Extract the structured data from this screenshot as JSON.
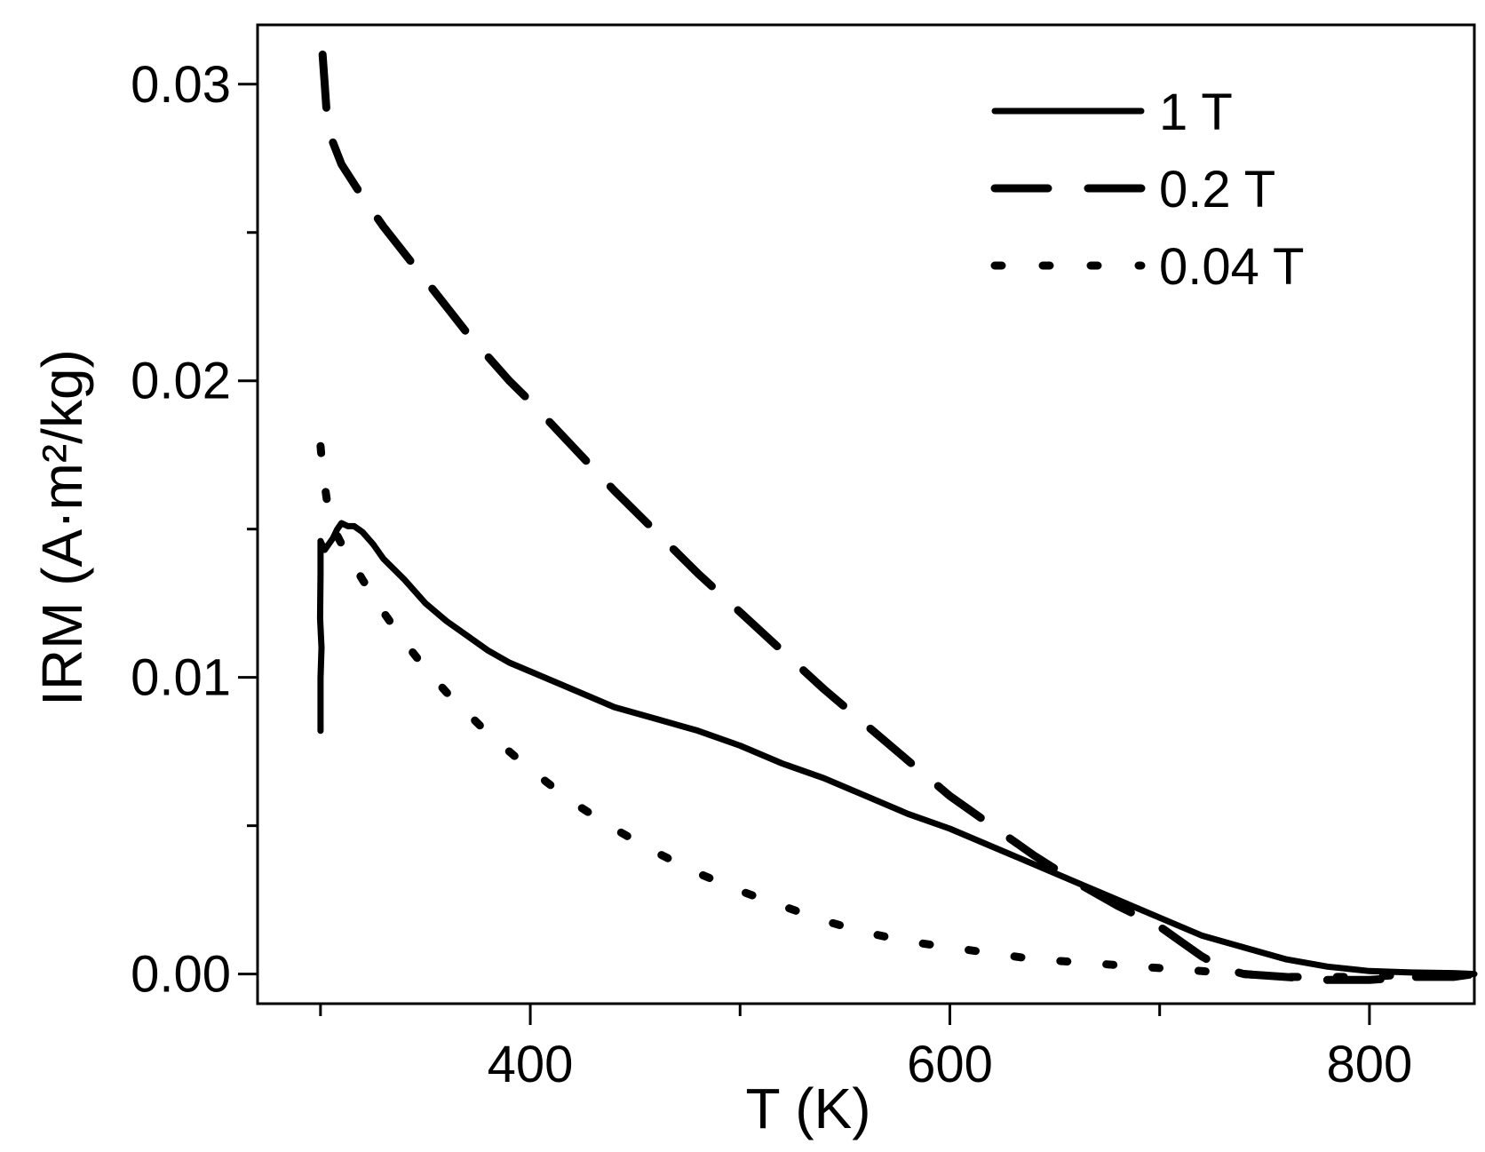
{
  "chart_data": {
    "type": "line",
    "xlabel": "T (K)",
    "ylabel": "IRM (A·m²/kg)",
    "xlim": [
      270,
      850
    ],
    "ylim": [
      -0.001,
      0.032
    ],
    "x_ticks": [
      {
        "value": 300,
        "label": ""
      },
      {
        "value": 400,
        "label": "400"
      },
      {
        "value": 500,
        "label": ""
      },
      {
        "value": 600,
        "label": "600"
      },
      {
        "value": 700,
        "label": ""
      },
      {
        "value": 800,
        "label": "800"
      }
    ],
    "y_ticks": [
      {
        "value": 0.0,
        "label": "0.00"
      },
      {
        "value": 0.005,
        "label": ""
      },
      {
        "value": 0.01,
        "label": "0.01"
      },
      {
        "value": 0.015,
        "label": ""
      },
      {
        "value": 0.02,
        "label": "0.02"
      },
      {
        "value": 0.025,
        "label": ""
      },
      {
        "value": 0.03,
        "label": "0.03"
      }
    ],
    "grid": false,
    "legend_position": "top-right",
    "series": [
      {
        "name": "1 T",
        "style": "solid",
        "color": "#000000",
        "x": [
          300,
          300,
          300.5,
          299.8,
          300,
          300,
          302,
          304,
          306,
          308,
          310,
          313,
          316,
          320,
          325,
          330,
          340,
          350,
          360,
          370,
          380,
          390,
          400,
          410,
          420,
          430,
          440,
          450,
          460,
          480,
          500,
          520,
          540,
          560,
          580,
          600,
          620,
          640,
          660,
          680,
          700,
          720,
          740,
          760,
          780,
          800,
          820,
          840,
          850
        ],
        "y": [
          0.0082,
          0.01,
          0.011,
          0.012,
          0.0135,
          0.0146,
          0.0143,
          0.0145,
          0.0147,
          0.015,
          0.0152,
          0.0151,
          0.0151,
          0.0149,
          0.0145,
          0.014,
          0.0133,
          0.0125,
          0.0119,
          0.0114,
          0.0109,
          0.0105,
          0.0102,
          0.0099,
          0.0096,
          0.0093,
          0.009,
          0.0088,
          0.0086,
          0.0082,
          0.0077,
          0.0071,
          0.0066,
          0.006,
          0.0054,
          0.0049,
          0.0043,
          0.0037,
          0.0031,
          0.0025,
          0.0019,
          0.0013,
          0.0009,
          0.0005,
          0.00025,
          0.0001,
          5e-05,
          3e-05,
          0.0
        ]
      },
      {
        "name": "0.2 T",
        "style": "dashed",
        "color": "#000000",
        "x": [
          301,
          302,
          303,
          305,
          310,
          320,
          330,
          340,
          350,
          360,
          370,
          380,
          390,
          400,
          420,
          440,
          460,
          480,
          500,
          520,
          540,
          560,
          580,
          600,
          620,
          640,
          660,
          680,
          700,
          710,
          720,
          730,
          740,
          760,
          780,
          800,
          820,
          840,
          850
        ],
        "y": [
          0.031,
          0.03,
          0.029,
          0.0282,
          0.0273,
          0.0262,
          0.0252,
          0.0243,
          0.0234,
          0.0225,
          0.0216,
          0.0208,
          0.02,
          0.0193,
          0.0178,
          0.0163,
          0.0149,
          0.0135,
          0.0122,
          0.0109,
          0.0096,
          0.0084,
          0.0072,
          0.006,
          0.005,
          0.004,
          0.0031,
          0.0023,
          0.0016,
          0.0011,
          0.0006,
          0.0002,
          0.0,
          -0.0001,
          -0.0002,
          -0.0002,
          -0.0001,
          -0.0001,
          0.0
        ]
      },
      {
        "name": "0.04 T",
        "style": "dotted",
        "color": "#000000",
        "x": [
          300,
          301,
          303,
          305,
          310,
          320,
          330,
          340,
          350,
          360,
          380,
          400,
          420,
          440,
          460,
          480,
          500,
          520,
          540,
          560,
          580,
          600,
          620,
          640,
          660,
          680,
          700,
          720,
          740,
          760,
          780,
          800,
          820,
          840
        ],
        "y": [
          0.0178,
          0.017,
          0.016,
          0.0152,
          0.0145,
          0.0133,
          0.0122,
          0.0112,
          0.0103,
          0.0095,
          0.0081,
          0.0069,
          0.0058,
          0.0049,
          0.0041,
          0.0034,
          0.0028,
          0.0023,
          0.0018,
          0.0014,
          0.0011,
          0.0009,
          0.0007,
          0.0005,
          0.0004,
          0.0003,
          0.0002,
          0.0001,
          0.0,
          -0.0001,
          -0.0001,
          -0.0001,
          0.0,
          0.0
        ]
      }
    ]
  }
}
